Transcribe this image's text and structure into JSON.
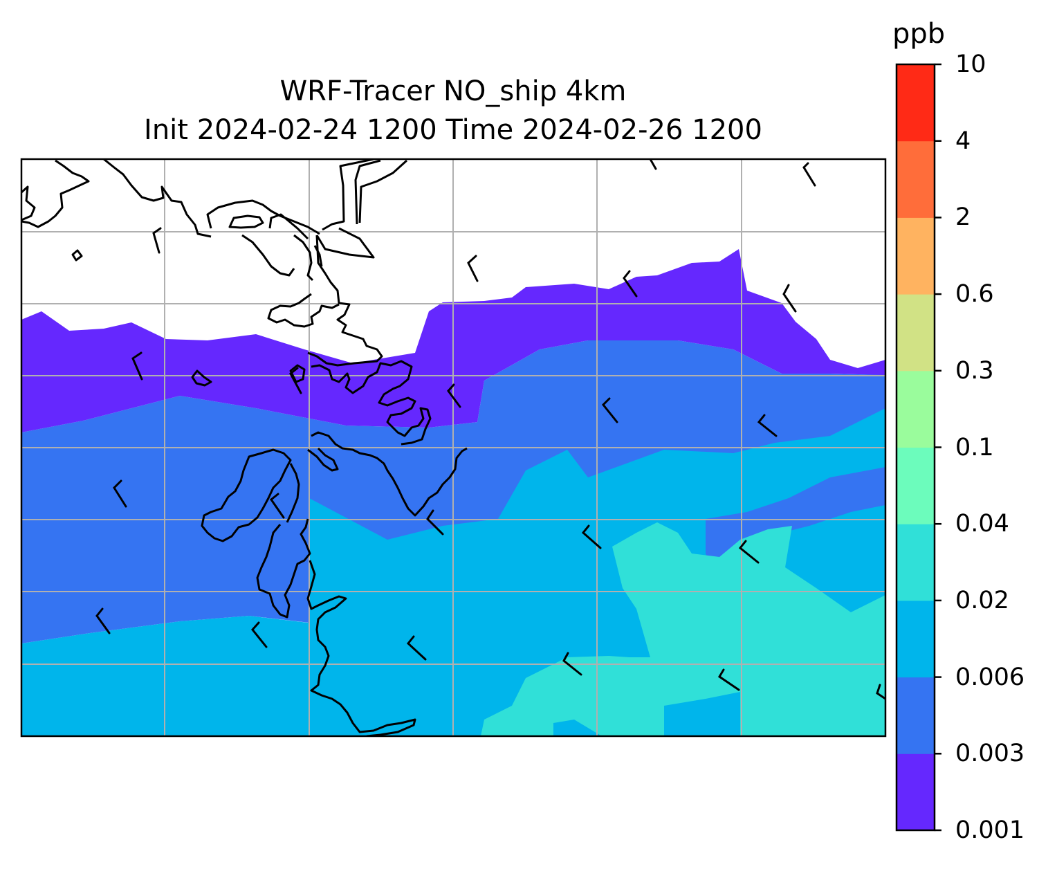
{
  "title": {
    "line1": "WRF-Tracer NO_ship 4km",
    "line2": "Init 2024-02-24 1200 Time 2024-02-26 1200"
  },
  "colorbar": {
    "unit": "ppb",
    "levels": [
      "0.001",
      "0.003",
      "0.006",
      "0.02",
      "0.04",
      "0.1",
      "0.3",
      "0.6",
      "2",
      "4",
      "10"
    ],
    "colors": [
      "#6528fe",
      "#3574f2",
      "#00b5eb",
      "#30e0d8",
      "#6cfcbc",
      "#9afc9c",
      "#d1e285",
      "#ffb360",
      "#ff6d3a",
      "#ff2a16"
    ]
  },
  "map": {
    "gridlines": true,
    "coastline_color": "#000000",
    "gridline_color": "#b0b0b0",
    "wind_barbs": true
  }
}
